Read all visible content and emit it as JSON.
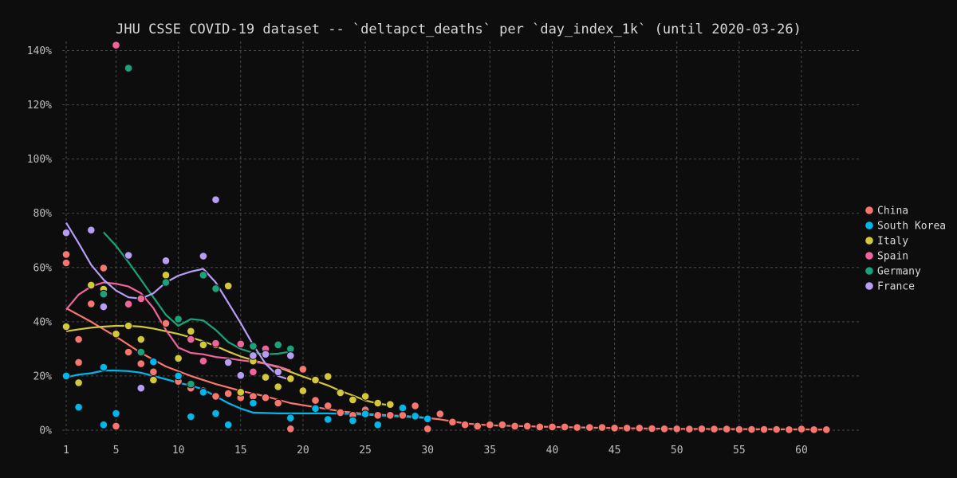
{
  "chart_data": {
    "type": "scatter",
    "title": "JHU CSSE COVID-19 dataset -- `deltapct_deaths` per `day_index_1k` (until 2020-03-26)",
    "xlabel": "",
    "ylabel": "",
    "xlim": [
      1,
      63
    ],
    "ylim": [
      0,
      1.45
    ],
    "x_ticks": [
      1,
      5,
      10,
      15,
      20,
      25,
      30,
      35,
      40,
      45,
      50,
      55,
      60
    ],
    "y_ticks": [
      0,
      0.2,
      0.4,
      0.6,
      0.8,
      1.0,
      1.2,
      1.4
    ],
    "y_tick_labels": [
      "0%",
      "20%",
      "40%",
      "60%",
      "80%",
      "100%",
      "120%",
      "140%"
    ],
    "grid": true,
    "legend_position": "right",
    "series": [
      {
        "name": "China",
        "color": "#f8766d",
        "points": [
          [
            1,
            0.617
          ],
          [
            1,
            0.648
          ],
          [
            2,
            0.335
          ],
          [
            2,
            0.25
          ],
          [
            3,
            0.466
          ],
          [
            4,
            0.598
          ],
          [
            5,
            0.015
          ],
          [
            6,
            0.288
          ],
          [
            7,
            0.245
          ],
          [
            8,
            0.215
          ],
          [
            9,
            0.394
          ],
          [
            10,
            0.18
          ],
          [
            11,
            0.155
          ],
          [
            12,
            0.145
          ],
          [
            13,
            0.125
          ],
          [
            14,
            0.135
          ],
          [
            15,
            0.12
          ],
          [
            16,
            0.125
          ],
          [
            17,
            0.12
          ],
          [
            18,
            0.1
          ],
          [
            19,
            0.005
          ],
          [
            20,
            0.225
          ],
          [
            21,
            0.11
          ],
          [
            22,
            0.09
          ],
          [
            23,
            0.065
          ],
          [
            24,
            0.055
          ],
          [
            25,
            0.075
          ],
          [
            26,
            0.055
          ],
          [
            27,
            0.055
          ],
          [
            28,
            0.055
          ],
          [
            29,
            0.09
          ],
          [
            30,
            0.005
          ],
          [
            31,
            0.06
          ],
          [
            32,
            0.03
          ],
          [
            33,
            0.02
          ],
          [
            34,
            0.015
          ],
          [
            35,
            0.02
          ],
          [
            36,
            0.02
          ],
          [
            37,
            0.015
          ],
          [
            38,
            0.015
          ],
          [
            39,
            0.012
          ],
          [
            40,
            0.012
          ],
          [
            41,
            0.012
          ],
          [
            42,
            0.01
          ],
          [
            43,
            0.01
          ],
          [
            44,
            0.01
          ],
          [
            45,
            0.008
          ],
          [
            46,
            0.008
          ],
          [
            47,
            0.008
          ],
          [
            48,
            0.006
          ],
          [
            49,
            0.005
          ],
          [
            50,
            0.005
          ],
          [
            51,
            0.004
          ],
          [
            52,
            0.005
          ],
          [
            53,
            0.004
          ],
          [
            54,
            0.004
          ],
          [
            55,
            0.003
          ],
          [
            56,
            0.003
          ],
          [
            57,
            0.003
          ],
          [
            58,
            0.003
          ],
          [
            59,
            0.002
          ],
          [
            60,
            0.004
          ],
          [
            61,
            0.002
          ],
          [
            62,
            0.002
          ]
        ],
        "trend": [
          [
            1,
            0.45
          ],
          [
            3,
            0.4
          ],
          [
            5,
            0.345
          ],
          [
            7,
            0.285
          ],
          [
            9,
            0.235
          ],
          [
            11,
            0.2
          ],
          [
            13,
            0.17
          ],
          [
            15,
            0.145
          ],
          [
            17,
            0.125
          ],
          [
            19,
            0.1
          ],
          [
            21,
            0.085
          ],
          [
            23,
            0.07
          ],
          [
            25,
            0.06
          ],
          [
            27,
            0.055
          ],
          [
            29,
            0.05
          ],
          [
            31,
            0.04
          ],
          [
            33,
            0.025
          ],
          [
            35,
            0.018
          ],
          [
            40,
            0.012
          ],
          [
            45,
            0.008
          ],
          [
            50,
            0.005
          ],
          [
            55,
            0.004
          ],
          [
            60,
            0.003
          ],
          [
            62,
            0.002
          ]
        ]
      },
      {
        "name": "South Korea",
        "color": "#00b7eb",
        "points": [
          [
            1,
            0.2
          ],
          [
            2,
            0.085
          ],
          [
            4,
            0.232
          ],
          [
            4,
            0.02
          ],
          [
            5,
            0.062
          ],
          [
            8,
            0.252
          ],
          [
            10,
            0.2
          ],
          [
            11,
            0.05
          ],
          [
            12,
            0.14
          ],
          [
            13,
            0.062
          ],
          [
            14,
            0.02
          ],
          [
            16,
            0.1
          ],
          [
            19,
            0.045
          ],
          [
            21,
            0.08
          ],
          [
            22,
            0.04
          ],
          [
            24,
            0.035
          ],
          [
            25,
            0.06
          ],
          [
            26,
            0.02
          ],
          [
            28,
            0.082
          ],
          [
            29,
            0.052
          ],
          [
            30,
            0.042
          ]
        ],
        "trend": [
          [
            1,
            0.195
          ],
          [
            2,
            0.205
          ],
          [
            3,
            0.21
          ],
          [
            4,
            0.22
          ],
          [
            5,
            0.22
          ],
          [
            6,
            0.218
          ],
          [
            7,
            0.212
          ],
          [
            8,
            0.2
          ],
          [
            9,
            0.188
          ],
          [
            10,
            0.175
          ],
          [
            11,
            0.165
          ],
          [
            12,
            0.15
          ],
          [
            13,
            0.125
          ],
          [
            14,
            0.1
          ],
          [
            15,
            0.08
          ],
          [
            16,
            0.065
          ],
          [
            18,
            0.062
          ],
          [
            20,
            0.062
          ],
          [
            22,
            0.062
          ],
          [
            24,
            0.06
          ],
          [
            26,
            0.055
          ],
          [
            28,
            0.05
          ],
          [
            30,
            0.045
          ]
        ]
      },
      {
        "name": "Italy",
        "color": "#d4c73a",
        "points": [
          [
            1,
            0.382
          ],
          [
            2,
            0.175
          ],
          [
            3,
            0.535
          ],
          [
            4,
            0.52
          ],
          [
            5,
            0.355
          ],
          [
            6,
            0.385
          ],
          [
            7,
            0.335
          ],
          [
            8,
            0.185
          ],
          [
            9,
            0.572
          ],
          [
            10,
            0.265
          ],
          [
            11,
            0.365
          ],
          [
            12,
            0.315
          ],
          [
            13,
            0.315
          ],
          [
            14,
            0.532
          ],
          [
            15,
            0.14
          ],
          [
            16,
            0.255
          ],
          [
            17,
            0.195
          ],
          [
            18,
            0.16
          ],
          [
            19,
            0.19
          ],
          [
            20,
            0.145
          ],
          [
            21,
            0.185
          ],
          [
            22,
            0.198
          ],
          [
            23,
            0.138
          ],
          [
            24,
            0.112
          ],
          [
            25,
            0.125
          ],
          [
            26,
            0.1
          ],
          [
            27,
            0.095
          ]
        ],
        "trend": [
          [
            1,
            0.365
          ],
          [
            2,
            0.372
          ],
          [
            3,
            0.378
          ],
          [
            4,
            0.382
          ],
          [
            5,
            0.385
          ],
          [
            6,
            0.385
          ],
          [
            7,
            0.382
          ],
          [
            8,
            0.375
          ],
          [
            9,
            0.365
          ],
          [
            10,
            0.355
          ],
          [
            11,
            0.342
          ],
          [
            12,
            0.328
          ],
          [
            13,
            0.31
          ],
          [
            14,
            0.29
          ],
          [
            15,
            0.272
          ],
          [
            16,
            0.258
          ],
          [
            17,
            0.245
          ],
          [
            18,
            0.232
          ],
          [
            19,
            0.215
          ],
          [
            20,
            0.198
          ],
          [
            21,
            0.182
          ],
          [
            22,
            0.165
          ],
          [
            23,
            0.145
          ],
          [
            24,
            0.128
          ],
          [
            25,
            0.11
          ],
          [
            26,
            0.098
          ],
          [
            27,
            0.092
          ]
        ]
      },
      {
        "name": "Spain",
        "color": "#f0649b",
        "points": [
          [
            5,
            1.42
          ],
          [
            6,
            0.465
          ],
          [
            7,
            0.485
          ],
          [
            11,
            0.335
          ],
          [
            12,
            0.255
          ],
          [
            13,
            0.32
          ],
          [
            15,
            0.318
          ],
          [
            16,
            0.215
          ],
          [
            17,
            0.3
          ]
        ],
        "trend": [
          [
            1,
            0.445
          ],
          [
            2,
            0.5
          ],
          [
            3,
            0.53
          ],
          [
            4,
            0.545
          ],
          [
            5,
            0.54
          ],
          [
            6,
            0.53
          ],
          [
            7,
            0.505
          ],
          [
            8,
            0.45
          ],
          [
            9,
            0.37
          ],
          [
            10,
            0.305
          ],
          [
            11,
            0.285
          ],
          [
            12,
            0.28
          ],
          [
            13,
            0.27
          ],
          [
            14,
            0.265
          ],
          [
            15,
            0.258
          ],
          [
            16,
            0.252
          ],
          [
            17,
            0.245
          ],
          [
            18,
            0.235
          ],
          [
            19,
            0.22
          ]
        ]
      },
      {
        "name": "Germany",
        "color": "#1aa37a",
        "points": [
          [
            4,
            0.502
          ],
          [
            6,
            1.335
          ],
          [
            7,
            0.288
          ],
          [
            9,
            0.545
          ],
          [
            10,
            0.41
          ],
          [
            11,
            0.17
          ],
          [
            12,
            0.572
          ],
          [
            13,
            0.522
          ],
          [
            16,
            0.31
          ],
          [
            18,
            0.315
          ],
          [
            19,
            0.3
          ]
        ],
        "trend": [
          [
            4,
            0.73
          ],
          [
            5,
            0.68
          ],
          [
            6,
            0.62
          ],
          [
            7,
            0.555
          ],
          [
            8,
            0.49
          ],
          [
            9,
            0.425
          ],
          [
            10,
            0.385
          ],
          [
            11,
            0.41
          ],
          [
            12,
            0.405
          ],
          [
            13,
            0.37
          ],
          [
            14,
            0.325
          ],
          [
            15,
            0.3
          ],
          [
            16,
            0.285
          ],
          [
            17,
            0.28
          ],
          [
            18,
            0.282
          ],
          [
            19,
            0.29
          ]
        ]
      },
      {
        "name": "France",
        "color": "#b79df5",
        "points": [
          [
            1,
            0.728
          ],
          [
            3,
            0.738
          ],
          [
            4,
            0.455
          ],
          [
            6,
            0.645
          ],
          [
            7,
            0.155
          ],
          [
            9,
            0.625
          ],
          [
            12,
            0.642
          ],
          [
            13,
            0.85
          ],
          [
            14,
            0.25
          ],
          [
            15,
            0.202
          ],
          [
            16,
            0.275
          ],
          [
            17,
            0.28
          ],
          [
            18,
            0.215
          ],
          [
            19,
            0.275
          ]
        ],
        "trend": [
          [
            1,
            0.765
          ],
          [
            2,
            0.69
          ],
          [
            3,
            0.61
          ],
          [
            4,
            0.555
          ],
          [
            5,
            0.515
          ],
          [
            6,
            0.49
          ],
          [
            7,
            0.485
          ],
          [
            8,
            0.505
          ],
          [
            9,
            0.545
          ],
          [
            10,
            0.57
          ],
          [
            11,
            0.585
          ],
          [
            12,
            0.595
          ],
          [
            13,
            0.545
          ],
          [
            14,
            0.47
          ],
          [
            15,
            0.395
          ],
          [
            16,
            0.315
          ],
          [
            17,
            0.245
          ],
          [
            18,
            0.2
          ],
          [
            19,
            0.185
          ]
        ]
      }
    ]
  }
}
